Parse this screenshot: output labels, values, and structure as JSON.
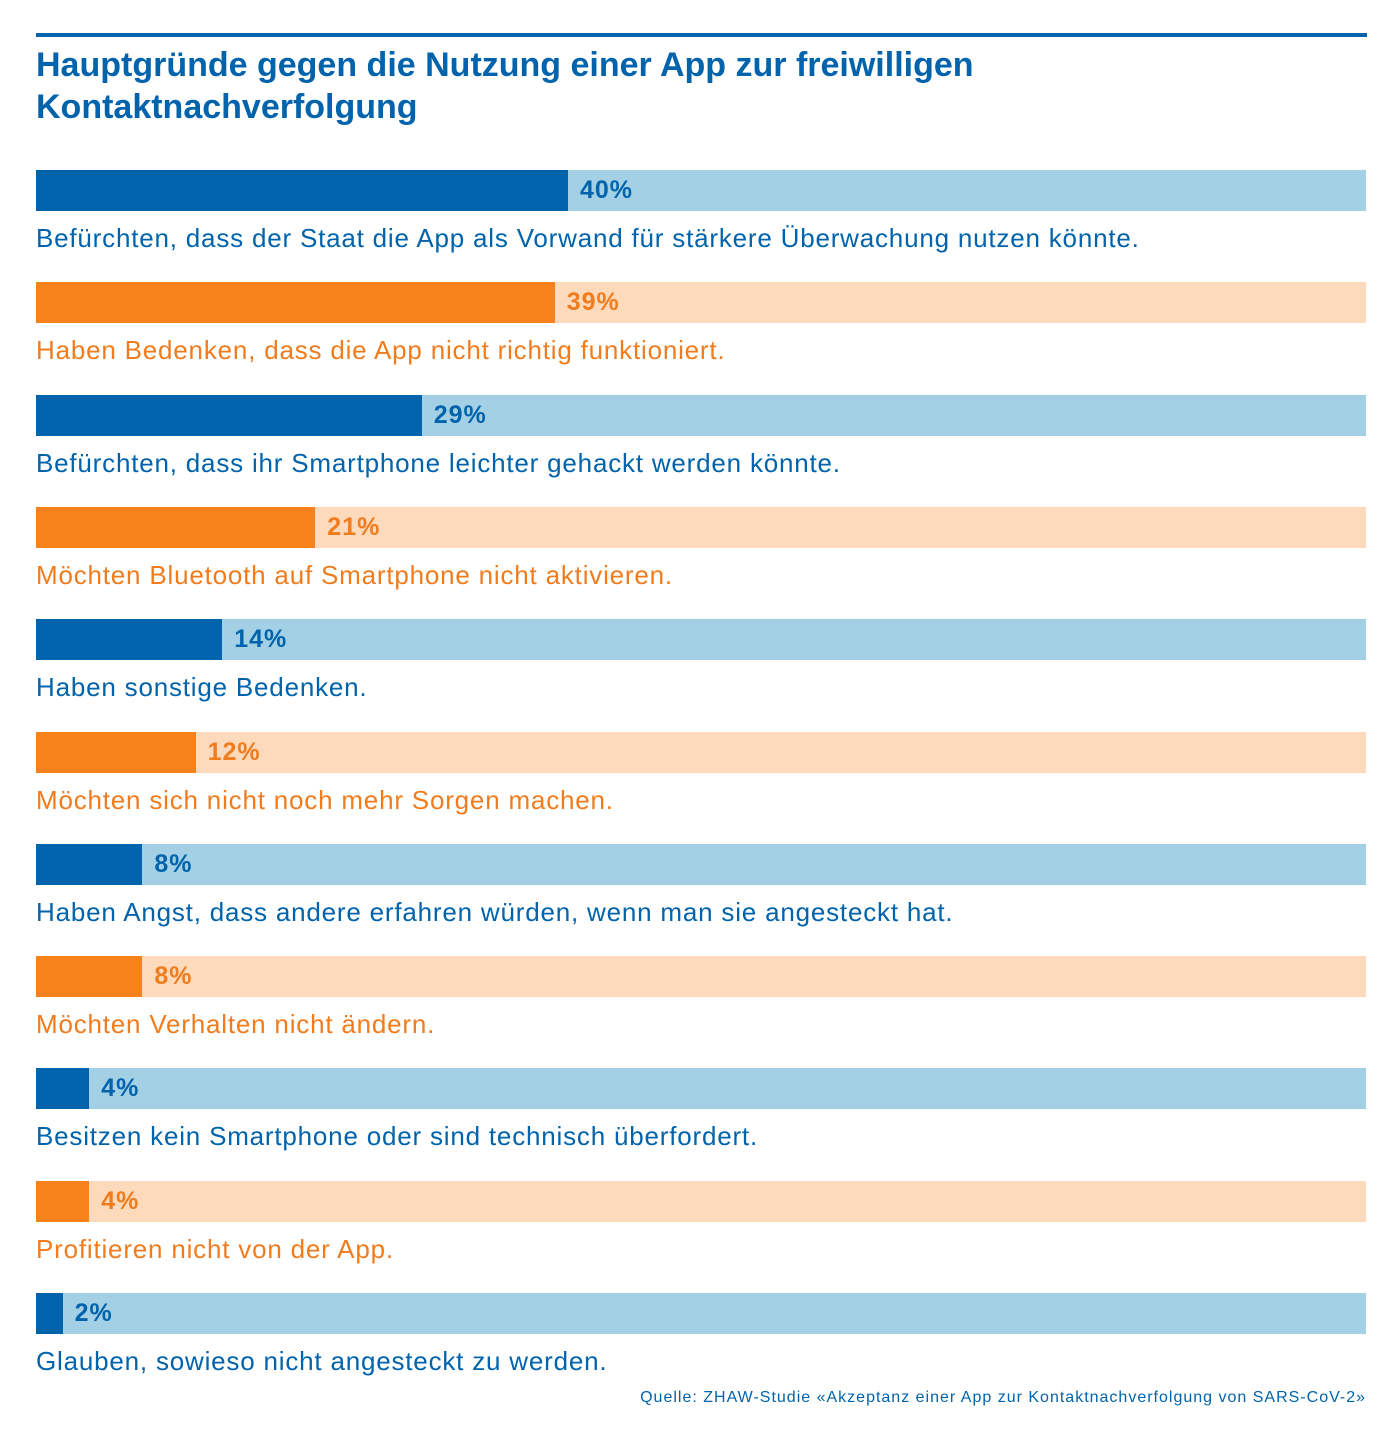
{
  "chart_data": {
    "type": "bar",
    "orientation": "horizontal",
    "title": "Hauptgründe gegen die Nutzung einer App zur freiwilligen Kontaktnachverfolgung",
    "xlim": [
      0,
      100
    ],
    "unit": "%",
    "grid": false,
    "legend": "none",
    "categories": [
      "Befürchten, dass der Staat die App als Vorwand für stärkere Überwachung nutzen könnte.",
      "Haben Bedenken, dass die App nicht richtig funktioniert.",
      "Befürchten, dass ihr Smartphone leichter gehackt werden könnte.",
      "Möchten Bluetooth auf Smartphone nicht aktivieren.",
      "Haben sonstige Bedenken.",
      "Möchten sich nicht noch mehr Sorgen machen.",
      "Haben Angst, dass andere erfahren würden, wenn man sie angesteckt hat.",
      "Möchten Verhalten nicht ändern.",
      "Besitzen kein Smartphone oder sind technisch überfordert.",
      "Profitieren nicht von der App.",
      "Glauben, sowieso nicht angesteckt zu werden."
    ],
    "values": [
      40,
      39,
      29,
      21,
      14,
      12,
      8,
      8,
      4,
      4,
      2
    ],
    "value_labels": [
      "40%",
      "39%",
      "29%",
      "21%",
      "14%",
      "12%",
      "8%",
      "8%",
      "4%",
      "4%",
      "2%"
    ],
    "colors": {
      "blue_fill": "#0063ac",
      "blue_track": "#a3d0e5",
      "orange_fill": "#f7811a",
      "orange_track": "#fddabb",
      "blue_text": "#0063ac",
      "orange_text": "#f07c1e"
    },
    "color_pattern": [
      "blue",
      "orange"
    ]
  },
  "source": "Quelle: ZHAW-Studie «Akzeptanz einer App zur Kontaktnachverfolgung von SARS-CoV-2»"
}
